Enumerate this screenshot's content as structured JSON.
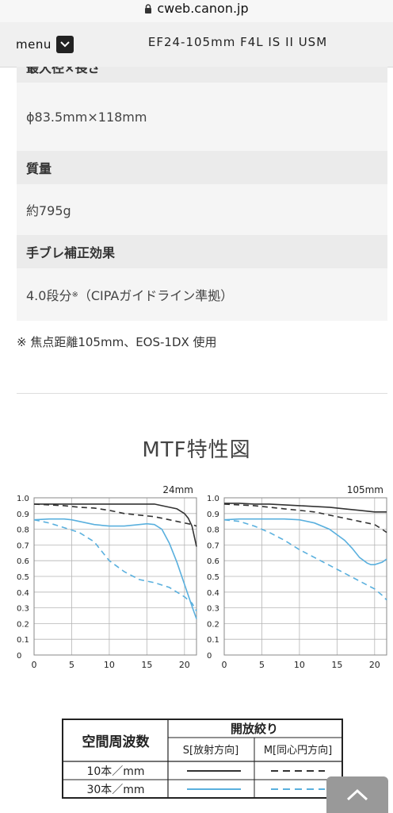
{
  "browser": {
    "url": "cweb.canon.jp"
  },
  "header": {
    "menu_label": "menu",
    "title": "EF24-105mm F4L IS II USM"
  },
  "spec_table": {
    "cut_heading": "最大径×長さ",
    "rows": [
      {
        "value": "ϕ83.5mm×118mm"
      },
      {
        "heading": "質量",
        "value": "約795g"
      },
      {
        "heading": "手ブレ補正効果",
        "value": "4.0段分",
        "value_sup": "※",
        "value_suffix": "（CIPAガイドライン準拠）"
      }
    ]
  },
  "footnote": "※  焦点距離105mm、EOS-1DX 使用",
  "mtf": {
    "title": "MTF特性図",
    "chart_data": [
      {
        "type": "line",
        "title": "24mm",
        "xticks": [
          "0",
          "5",
          "10",
          "15",
          "20"
        ],
        "yticks": [
          "0",
          "0.1",
          "0.2",
          "0.3",
          "0.4",
          "0.5",
          "0.6",
          "0.7",
          "0.8",
          "0.9",
          "1.0"
        ],
        "xlim": [
          0,
          21.6
        ],
        "ylim": [
          0,
          1.0
        ],
        "grid": true,
        "series": [
          {
            "x": [
              0,
              2,
              4,
              6,
              8,
              10,
              12,
              14,
              16,
              17,
              18,
              19,
              20,
              20.5,
              21,
              21.6
            ],
            "values": [
              0.96,
              0.96,
              0.96,
              0.96,
              0.96,
              0.96,
              0.96,
              0.96,
              0.96,
              0.95,
              0.94,
              0.93,
              0.9,
              0.87,
              0.82,
              0.69
            ],
            "style": "solid",
            "color": "#333333"
          },
          {
            "x": [
              0,
              2,
              4,
              6,
              8,
              10,
              12,
              14,
              16,
              17,
              18,
              19,
              20,
              21,
              21.6
            ],
            "values": [
              0.96,
              0.955,
              0.95,
              0.94,
              0.935,
              0.92,
              0.9,
              0.89,
              0.88,
              0.87,
              0.86,
              0.85,
              0.84,
              0.83,
              0.82
            ],
            "style": "dashed",
            "color": "#333333"
          },
          {
            "x": [
              0,
              2,
              4,
              5,
              6,
              8,
              10,
              12,
              14,
              15,
              16,
              17,
              18,
              19,
              20,
              21,
              21.6
            ],
            "values": [
              0.86,
              0.865,
              0.865,
              0.86,
              0.85,
              0.83,
              0.82,
              0.82,
              0.83,
              0.835,
              0.83,
              0.8,
              0.71,
              0.59,
              0.45,
              0.31,
              0.23
            ],
            "style": "solid",
            "color": "#5ab0de"
          },
          {
            "x": [
              0,
              2,
              4,
              6,
              8,
              10,
              12,
              14,
              16,
              18,
              19,
              20,
              21,
              21.6
            ],
            "values": [
              0.86,
              0.84,
              0.81,
              0.78,
              0.72,
              0.6,
              0.53,
              0.48,
              0.46,
              0.43,
              0.4,
              0.37,
              0.33,
              0.28
            ],
            "style": "dashed",
            "color": "#5ab0de"
          }
        ]
      },
      {
        "type": "line",
        "title": "105mm",
        "xticks": [
          "0",
          "5",
          "10",
          "15",
          "20"
        ],
        "yticks": [
          "0",
          "0.1",
          "0.2",
          "0.3",
          "0.4",
          "0.5",
          "0.6",
          "0.7",
          "0.8",
          "0.9",
          "1.0"
        ],
        "xlim": [
          0,
          21.6
        ],
        "ylim": [
          0,
          1.0
        ],
        "grid": true,
        "series": [
          {
            "x": [
              0,
              2,
              4,
              6,
              8,
              10,
              12,
              14,
              16,
              18,
              19,
              20,
              21,
              21.6
            ],
            "values": [
              0.965,
              0.965,
              0.96,
              0.96,
              0.955,
              0.95,
              0.945,
              0.94,
              0.93,
              0.92,
              0.915,
              0.91,
              0.91,
              0.91
            ],
            "style": "solid",
            "color": "#333333"
          },
          {
            "x": [
              0,
              2,
              4,
              6,
              8,
              10,
              12,
              14,
              16,
              18,
              20,
              21,
              21.6
            ],
            "values": [
              0.96,
              0.955,
              0.95,
              0.94,
              0.93,
              0.92,
              0.91,
              0.89,
              0.87,
              0.85,
              0.83,
              0.8,
              0.78
            ],
            "style": "dashed",
            "color": "#333333"
          },
          {
            "x": [
              0,
              2,
              4,
              6,
              8,
              10,
              12,
              14,
              16,
              17,
              18,
              19,
              19.5,
              20,
              21,
              21.6
            ],
            "values": [
              0.86,
              0.865,
              0.865,
              0.865,
              0.865,
              0.86,
              0.84,
              0.8,
              0.73,
              0.68,
              0.62,
              0.585,
              0.575,
              0.575,
              0.59,
              0.61
            ],
            "style": "solid",
            "color": "#5ab0de"
          },
          {
            "x": [
              0,
              2,
              4,
              6,
              8,
              10,
              12,
              14,
              16,
              18,
              20,
              21,
              21.6
            ],
            "values": [
              0.86,
              0.85,
              0.82,
              0.78,
              0.73,
              0.67,
              0.62,
              0.57,
              0.52,
              0.47,
              0.42,
              0.38,
              0.35
            ],
            "style": "dashed",
            "color": "#5ab0de"
          }
        ]
      }
    ],
    "legend": {
      "header_label": "空間周波数",
      "aperture_label": "開放絞り",
      "s_label": "S[放射方向]",
      "m_label": "M[同心円方向]",
      "row_10": "10本／mm",
      "row_30": "30本／mm",
      "dark_color": "#333333",
      "blue_color": "#5ab0de"
    }
  }
}
